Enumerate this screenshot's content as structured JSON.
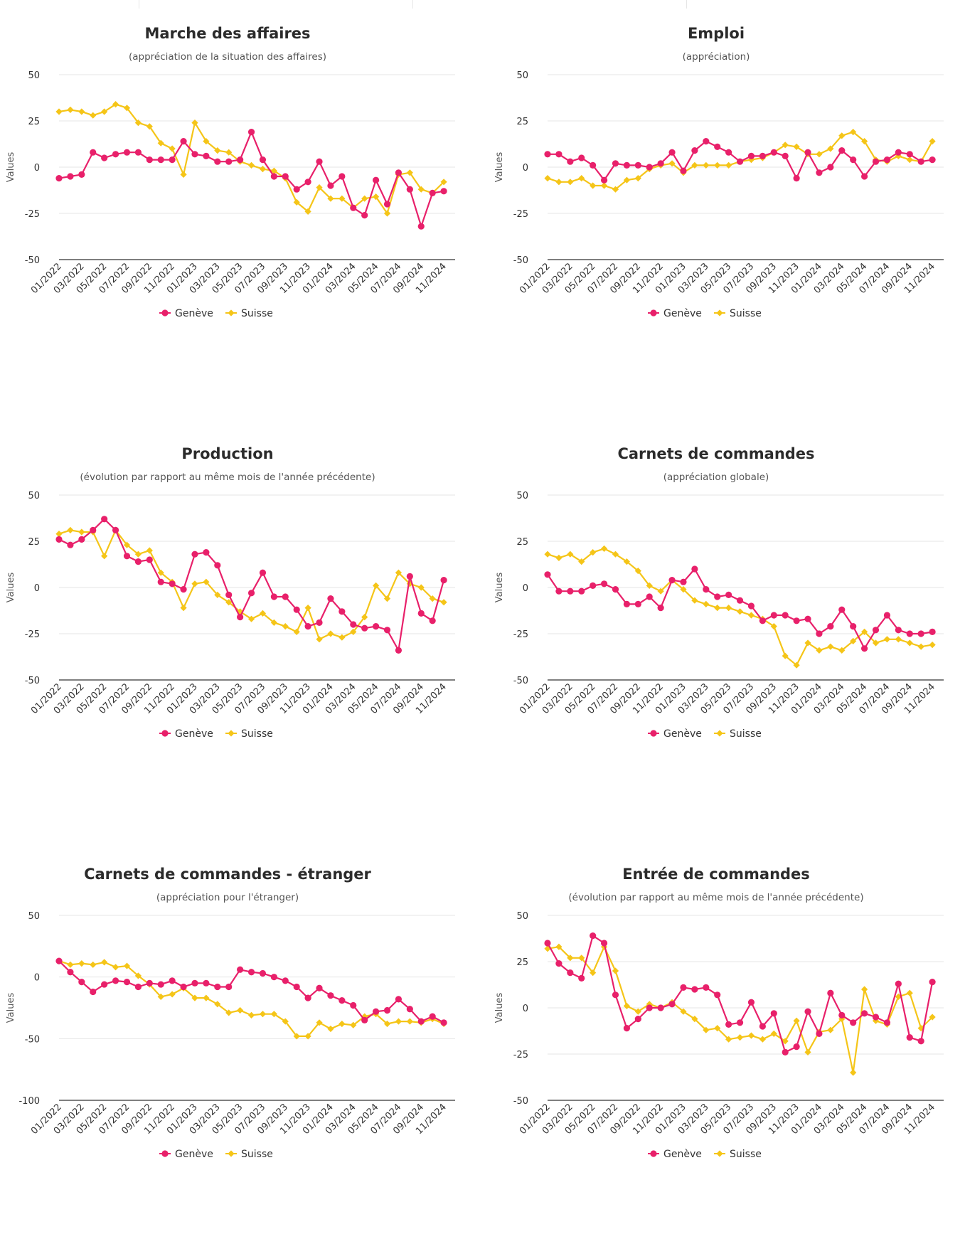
{
  "colors": {
    "geneve": "#e8206a",
    "suisse": "#f5c518"
  },
  "chart_data": [
    {
      "type": "line",
      "title": "Marche des affaires",
      "subtitle": "(appréciation de la situation des affaires)",
      "ylabel": "Values",
      "ylim": [
        -50,
        50
      ],
      "yticks": [
        50,
        25,
        0,
        -25,
        -50
      ],
      "x_tick_labels": [
        "01/2022",
        "03/2022",
        "05/2022",
        "07/2022",
        "09/2022",
        "11/2022",
        "01/2023",
        "03/2023",
        "05/2023",
        "07/2023",
        "09/2023",
        "11/2023",
        "01/2024",
        "03/2024",
        "05/2024",
        "07/2024",
        "09/2024",
        "11/2024"
      ],
      "x": [
        "01/2022",
        "02/2022",
        "03/2022",
        "04/2022",
        "05/2022",
        "06/2022",
        "07/2022",
        "08/2022",
        "09/2022",
        "10/2022",
        "11/2022",
        "12/2022",
        "01/2023",
        "02/2023",
        "03/2023",
        "04/2023",
        "05/2023",
        "06/2023",
        "07/2023",
        "08/2023",
        "09/2023",
        "10/2023",
        "11/2023",
        "12/2023",
        "01/2024",
        "02/2024",
        "03/2024",
        "04/2024",
        "05/2024",
        "06/2024",
        "07/2024",
        "08/2024",
        "09/2024",
        "10/2024",
        "11/2024",
        "12/2024"
      ],
      "series": [
        {
          "name": "Genève",
          "values": [
            -6,
            -5,
            -4,
            8,
            5,
            7,
            8,
            8,
            4,
            4,
            4,
            14,
            7,
            6,
            3,
            3,
            4,
            19,
            4,
            -5,
            -5,
            -12,
            -8,
            3,
            -10,
            -5,
            -22,
            -26,
            -7,
            -20,
            -3,
            -12,
            -32,
            -14,
            -13,
            null
          ]
        },
        {
          "name": "Suisse",
          "values": [
            30,
            31,
            30,
            28,
            30,
            34,
            32,
            24,
            22,
            13,
            10,
            -4,
            24,
            14,
            9,
            8,
            3,
            1,
            -1,
            -2,
            -6,
            -19,
            -24,
            -11,
            -17,
            -17,
            -22,
            -17,
            -16,
            -25,
            -4,
            -3,
            -12,
            -14,
            -8,
            null
          ]
        }
      ],
      "legend": "bottom-center",
      "grid": true
    },
    {
      "type": "line",
      "title": "Emploi",
      "subtitle": "(appréciation)",
      "ylabel": "Values",
      "ylim": [
        -50,
        50
      ],
      "yticks": [
        50,
        25,
        0,
        -25,
        -50
      ],
      "x_tick_labels": [
        "01/2022",
        "03/2022",
        "05/2022",
        "07/2022",
        "09/2022",
        "11/2022",
        "01/2023",
        "03/2023",
        "05/2023",
        "07/2023",
        "09/2023",
        "11/2023",
        "01/2024",
        "03/2024",
        "05/2024",
        "07/2024",
        "09/2024",
        "11/2024"
      ],
      "x": [
        "01/2022",
        "02/2022",
        "03/2022",
        "04/2022",
        "05/2022",
        "06/2022",
        "07/2022",
        "08/2022",
        "09/2022",
        "10/2022",
        "11/2022",
        "12/2022",
        "01/2023",
        "02/2023",
        "03/2023",
        "04/2023",
        "05/2023",
        "06/2023",
        "07/2023",
        "08/2023",
        "09/2023",
        "10/2023",
        "11/2023",
        "12/2023",
        "01/2024",
        "02/2024",
        "03/2024",
        "04/2024",
        "05/2024",
        "06/2024",
        "07/2024",
        "08/2024",
        "09/2024",
        "10/2024",
        "11/2024",
        "12/2024"
      ],
      "series": [
        {
          "name": "Genève",
          "values": [
            7,
            7,
            3,
            5,
            1,
            -7,
            2,
            1,
            1,
            0,
            2,
            8,
            -2,
            9,
            14,
            11,
            8,
            3,
            6,
            6,
            8,
            6,
            -6,
            8,
            -3,
            0,
            9,
            4,
            -5,
            3,
            4,
            8,
            7,
            3,
            4,
            null
          ]
        },
        {
          "name": "Suisse",
          "values": [
            -6,
            -8,
            -8,
            -6,
            -10,
            -10,
            -12,
            -7,
            -6,
            -1,
            1,
            2,
            -3,
            1,
            1,
            1,
            1,
            3,
            4,
            5,
            8,
            12,
            11,
            7,
            7,
            10,
            17,
            19,
            14,
            4,
            3,
            6,
            4,
            3,
            14,
            null
          ]
        }
      ],
      "legend": "bottom-center",
      "grid": true
    },
    {
      "type": "line",
      "title": "Production",
      "subtitle": "(évolution par rapport au même mois de l'année précédente)",
      "ylabel": "Values",
      "ylim": [
        -50,
        50
      ],
      "yticks": [
        50,
        25,
        0,
        -25,
        -50
      ],
      "x_tick_labels": [
        "01/2022",
        "03/2022",
        "05/2022",
        "07/2022",
        "09/2022",
        "11/2022",
        "01/2023",
        "03/2023",
        "05/2023",
        "07/2023",
        "09/2023",
        "11/2023",
        "01/2024",
        "03/2024",
        "05/2024",
        "07/2024",
        "09/2024",
        "11/2024"
      ],
      "x": [
        "01/2022",
        "02/2022",
        "03/2022",
        "04/2022",
        "05/2022",
        "06/2022",
        "07/2022",
        "08/2022",
        "09/2022",
        "10/2022",
        "11/2022",
        "12/2022",
        "01/2023",
        "02/2023",
        "03/2023",
        "04/2023",
        "05/2023",
        "06/2023",
        "07/2023",
        "08/2023",
        "09/2023",
        "10/2023",
        "11/2023",
        "12/2023",
        "01/2024",
        "02/2024",
        "03/2024",
        "04/2024",
        "05/2024",
        "06/2024",
        "07/2024",
        "08/2024",
        "09/2024",
        "10/2024",
        "11/2024",
        "12/2024"
      ],
      "series": [
        {
          "name": "Genève",
          "values": [
            26,
            23,
            26,
            31,
            37,
            31,
            17,
            14,
            15,
            3,
            2,
            -1,
            18,
            19,
            12,
            -4,
            -16,
            -3,
            8,
            -5,
            -5,
            -12,
            -21,
            -19,
            -6,
            -13,
            -20,
            -22,
            -21,
            -23,
            -34,
            6,
            -14,
            -18,
            4,
            null
          ]
        },
        {
          "name": "Suisse",
          "values": [
            29,
            31,
            30,
            30,
            17,
            31,
            23,
            18,
            20,
            8,
            3,
            -11,
            2,
            3,
            -4,
            -8,
            -13,
            -17,
            -14,
            -19,
            -21,
            -24,
            -11,
            -28,
            -25,
            -27,
            -24,
            -16,
            1,
            -6,
            8,
            2,
            0,
            -6,
            -8,
            null
          ]
        }
      ],
      "legend": "bottom-center",
      "grid": true
    },
    {
      "type": "line",
      "title": "Carnets de commandes",
      "subtitle": "(appréciation globale)",
      "ylabel": "Values",
      "ylim": [
        -50,
        50
      ],
      "yticks": [
        50,
        25,
        0,
        -25,
        -50
      ],
      "x_tick_labels": [
        "01/2022",
        "03/2022",
        "05/2022",
        "07/2022",
        "09/2022",
        "11/2022",
        "01/2023",
        "03/2023",
        "05/2023",
        "07/2023",
        "09/2023",
        "11/2023",
        "01/2024",
        "03/2024",
        "05/2024",
        "07/2024",
        "09/2024",
        "11/2024"
      ],
      "x": [
        "01/2022",
        "02/2022",
        "03/2022",
        "04/2022",
        "05/2022",
        "06/2022",
        "07/2022",
        "08/2022",
        "09/2022",
        "10/2022",
        "11/2022",
        "12/2022",
        "01/2023",
        "02/2023",
        "03/2023",
        "04/2023",
        "05/2023",
        "06/2023",
        "07/2023",
        "08/2023",
        "09/2023",
        "10/2023",
        "11/2023",
        "12/2023",
        "01/2024",
        "02/2024",
        "03/2024",
        "04/2024",
        "05/2024",
        "06/2024",
        "07/2024",
        "08/2024",
        "09/2024",
        "10/2024",
        "11/2024",
        "12/2024"
      ],
      "series": [
        {
          "name": "Genève",
          "values": [
            7,
            -2,
            -2,
            -2,
            1,
            2,
            -1,
            -9,
            -9,
            -5,
            -11,
            4,
            3,
            10,
            -1,
            -5,
            -4,
            -7,
            -10,
            -18,
            -15,
            -15,
            -18,
            -17,
            -25,
            -21,
            -12,
            -21,
            -33,
            -23,
            -15,
            -23,
            -25,
            -25,
            -24,
            null
          ]
        },
        {
          "name": "Suisse",
          "values": [
            18,
            16,
            18,
            14,
            19,
            21,
            18,
            14,
            9,
            1,
            -2,
            4,
            -1,
            -7,
            -9,
            -11,
            -11,
            -13,
            -15,
            -17,
            -21,
            -37,
            -42,
            -30,
            -34,
            -32,
            -34,
            -29,
            -24,
            -30,
            -28,
            -28,
            -30,
            -32,
            -31,
            null
          ]
        }
      ],
      "legend": "bottom-center",
      "grid": true
    },
    {
      "type": "line",
      "title": "Carnets de commandes - étranger",
      "subtitle": "(appréciation pour l'étranger)",
      "ylabel": "Values",
      "ylim": [
        -100,
        50
      ],
      "yticks": [
        50,
        0,
        -50,
        -100
      ],
      "x_tick_labels": [
        "01/2022",
        "03/2022",
        "05/2022",
        "07/2022",
        "09/2022",
        "11/2022",
        "01/2023",
        "03/2023",
        "05/2023",
        "07/2023",
        "09/2023",
        "11/2023",
        "01/2024",
        "03/2024",
        "05/2024",
        "07/2024",
        "09/2024",
        "11/2024"
      ],
      "x": [
        "01/2022",
        "02/2022",
        "03/2022",
        "04/2022",
        "05/2022",
        "06/2022",
        "07/2022",
        "08/2022",
        "09/2022",
        "10/2022",
        "11/2022",
        "12/2022",
        "01/2023",
        "02/2023",
        "03/2023",
        "04/2023",
        "05/2023",
        "06/2023",
        "07/2023",
        "08/2023",
        "09/2023",
        "10/2023",
        "11/2023",
        "12/2023",
        "01/2024",
        "02/2024",
        "03/2024",
        "04/2024",
        "05/2024",
        "06/2024",
        "07/2024",
        "08/2024",
        "09/2024",
        "10/2024",
        "11/2024",
        "12/2024"
      ],
      "series": [
        {
          "name": "Genève",
          "values": [
            13,
            4,
            -4,
            -12,
            -6,
            -3,
            -4,
            -8,
            -5,
            -6,
            -3,
            -8,
            -5,
            -5,
            -8,
            -8,
            6,
            4,
            3,
            0,
            -3,
            -8,
            -17,
            -9,
            -15,
            -19,
            -23,
            -35,
            -28,
            -27,
            -18,
            -26,
            -36,
            -32,
            -37,
            null
          ]
        },
        {
          "name": "Suisse",
          "values": [
            13,
            10,
            11,
            10,
            12,
            8,
            9,
            1,
            -6,
            -16,
            -14,
            -9,
            -17,
            -17,
            -22,
            -29,
            -27,
            -31,
            -30,
            -30,
            -36,
            -48,
            -48,
            -37,
            -42,
            -38,
            -39,
            -32,
            -30,
            -38,
            -36,
            -36,
            -37,
            -34,
            -38,
            null
          ]
        }
      ],
      "legend": "bottom-center",
      "grid": true
    },
    {
      "type": "line",
      "title": "Entrée de commandes",
      "subtitle": "(évolution par rapport au même mois de l'année précédente)",
      "ylabel": "Values",
      "ylim": [
        -50,
        50
      ],
      "yticks": [
        50,
        25,
        0,
        -25,
        -50
      ],
      "x_tick_labels": [
        "01/2022",
        "03/2022",
        "05/2022",
        "07/2022",
        "09/2022",
        "11/2022",
        "01/2023",
        "03/2023",
        "05/2023",
        "07/2023",
        "09/2023",
        "11/2023",
        "01/2024",
        "03/2024",
        "05/2024",
        "07/2024",
        "09/2024",
        "11/2024"
      ],
      "x": [
        "01/2022",
        "02/2022",
        "03/2022",
        "04/2022",
        "05/2022",
        "06/2022",
        "07/2022",
        "08/2022",
        "09/2022",
        "10/2022",
        "11/2022",
        "12/2022",
        "01/2023",
        "02/2023",
        "03/2023",
        "04/2023",
        "05/2023",
        "06/2023",
        "07/2023",
        "08/2023",
        "09/2023",
        "10/2023",
        "11/2023",
        "12/2023",
        "01/2024",
        "02/2024",
        "03/2024",
        "04/2024",
        "05/2024",
        "06/2024",
        "07/2024",
        "08/2024",
        "09/2024",
        "10/2024",
        "11/2024",
        "12/2024"
      ],
      "series": [
        {
          "name": "Genève",
          "values": [
            35,
            24,
            19,
            16,
            39,
            35,
            7,
            -11,
            -6,
            0,
            0,
            2,
            11,
            10,
            11,
            7,
            -9,
            -8,
            3,
            -10,
            -3,
            -24,
            -21,
            -2,
            -14,
            8,
            -4,
            -8,
            -3,
            -5,
            -8,
            13,
            -16,
            -18,
            14,
            null
          ]
        },
        {
          "name": "Suisse",
          "values": [
            32,
            33,
            27,
            27,
            19,
            33,
            20,
            1,
            -2,
            2,
            0,
            3,
            -2,
            -6,
            -12,
            -11,
            -17,
            -16,
            -15,
            -17,
            -14,
            -18,
            -7,
            -24,
            -13,
            -12,
            -6,
            -35,
            10,
            -7,
            -9,
            6,
            8,
            -11,
            -5,
            null
          ]
        }
      ],
      "legend": "bottom-center",
      "grid": true
    }
  ]
}
